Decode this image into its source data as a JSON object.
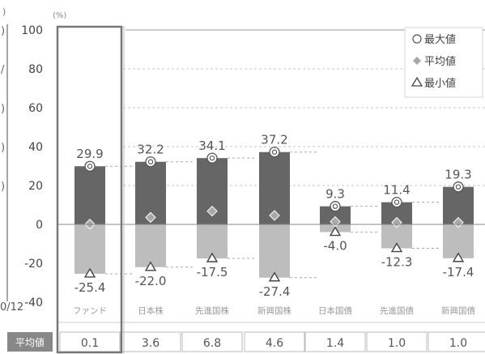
{
  "left_fragment": {
    "unit_mark": ")",
    "tick_marks": [
      ")",
      "/",
      ")",
      ")",
      ")",
      "",
      "",
      "",
      ""
    ],
    "date_label": "0/12"
  },
  "axis": {
    "unit_label": "(%)",
    "ticks": [
      "100",
      "80",
      "60",
      "40",
      "20",
      "0",
      "-20",
      "-40"
    ]
  },
  "legend": {
    "max_label": "最大値",
    "avg_label": "平均値",
    "min_label": "最小値"
  },
  "average_row": {
    "label": "平均値"
  },
  "colors": {
    "positive_bar": "#666666",
    "negative_bar": "#bdbdbd",
    "avg_label_bg": "#888888",
    "frame": "#777777"
  },
  "chart_data": {
    "type": "bar",
    "title": "",
    "ylabel": "(%)",
    "ylim": [
      -40,
      100
    ],
    "categories": [
      "ファンド",
      "日本株",
      "先進国株",
      "新興国株",
      "日本国債",
      "先進国債",
      "新興国債"
    ],
    "series": [
      {
        "name": "最大値",
        "values": [
          29.9,
          32.2,
          34.1,
          37.2,
          9.3,
          11.4,
          19.3
        ]
      },
      {
        "name": "平均値",
        "values": [
          0.1,
          3.6,
          6.8,
          4.6,
          1.4,
          1.0,
          1.0
        ]
      },
      {
        "name": "最小値",
        "values": [
          -25.4,
          -22.0,
          -17.5,
          -27.4,
          -4.0,
          -12.3,
          -17.4
        ]
      }
    ],
    "max_labels": [
      "29.9",
      "32.2",
      "34.1",
      "37.2",
      "9.3",
      "11.4",
      "19.3"
    ],
    "min_labels": [
      "-25.4",
      "-22.0",
      "-17.5",
      "-27.4",
      "-4.0",
      "-12.3",
      "-17.4"
    ],
    "avg_labels": [
      "0.1",
      "3.6",
      "6.8",
      "4.6",
      "1.4",
      "1.0",
      "1.0"
    ],
    "grid": true,
    "legend_position": "top-right",
    "highlighted_category": "ファンド"
  }
}
